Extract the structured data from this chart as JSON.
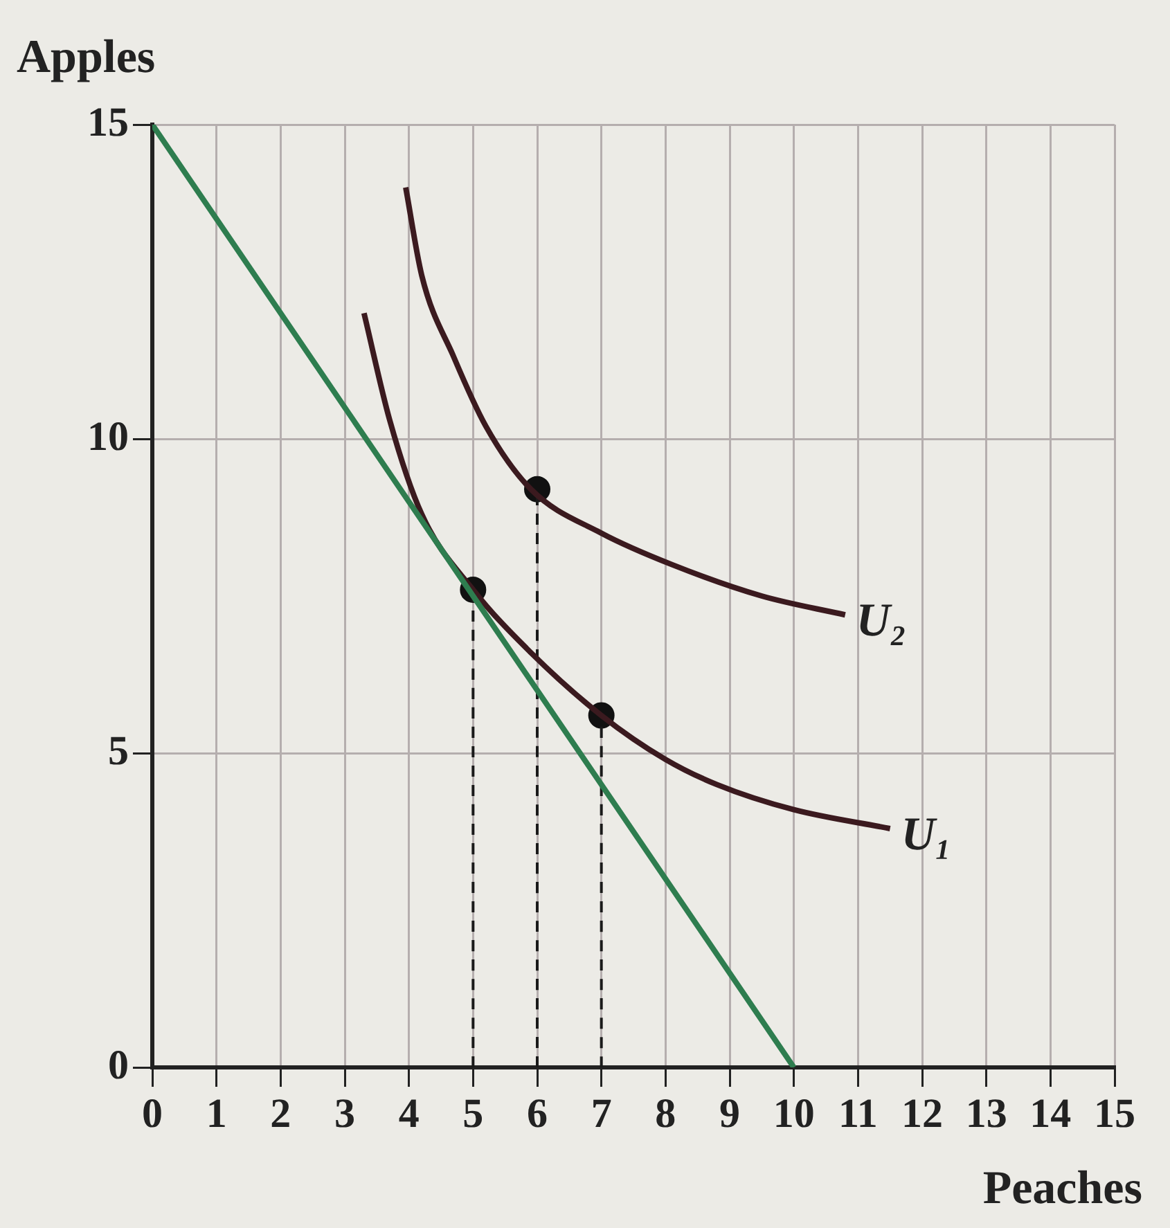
{
  "chart_data": {
    "type": "line",
    "xlabel": "Peaches",
    "ylabel": "Apples",
    "xlim": [
      0,
      15
    ],
    "ylim": [
      0,
      15
    ],
    "xticks": [
      0,
      1,
      2,
      3,
      4,
      5,
      6,
      7,
      8,
      9,
      10,
      11,
      12,
      13,
      14,
      15
    ],
    "yticks": [
      0,
      5,
      10,
      15
    ],
    "grid": true,
    "legend": false,
    "series": [
      {
        "type": "line",
        "color": "#2e7d4f",
        "x": [
          0,
          10
        ],
        "values": [
          15,
          0
        ]
      },
      {
        "type": "line",
        "name": "U₁",
        "color": "#3b1a1f",
        "x": [
          3.3,
          3.7,
          4.2,
          5,
          5.9,
          7,
          8,
          8.8,
          10,
          11.5
        ],
        "values": [
          12,
          10.3,
          8.8,
          7.6,
          6.6,
          5.6,
          4.9,
          4.5,
          4.1,
          3.8
        ]
      },
      {
        "type": "line",
        "name": "U₂",
        "color": "#3b1a1f",
        "x": [
          3.95,
          4.2,
          4.7,
          5.2,
          5.9,
          7,
          8.1,
          9.5,
          10.8
        ],
        "values": [
          14,
          12.6,
          11.3,
          10.2,
          9.2,
          8.5,
          8,
          7.5,
          7.2
        ]
      },
      {
        "type": "line",
        "line_style": "dashed",
        "color": "#1a1a1a",
        "x": [
          5,
          5
        ],
        "values": [
          0,
          7.6
        ]
      },
      {
        "type": "line",
        "line_style": "dashed",
        "color": "#1a1a1a",
        "x": [
          6,
          6
        ],
        "values": [
          0,
          9.2
        ]
      },
      {
        "type": "line",
        "line_style": "dashed",
        "color": "#1a1a1a",
        "x": [
          7,
          7
        ],
        "values": [
          0,
          5.6
        ]
      },
      {
        "type": "scatter",
        "marker": "circle",
        "color": "#111111",
        "x": [
          5,
          6,
          7
        ],
        "values": [
          7.6,
          9.2,
          5.6
        ]
      }
    ]
  }
}
